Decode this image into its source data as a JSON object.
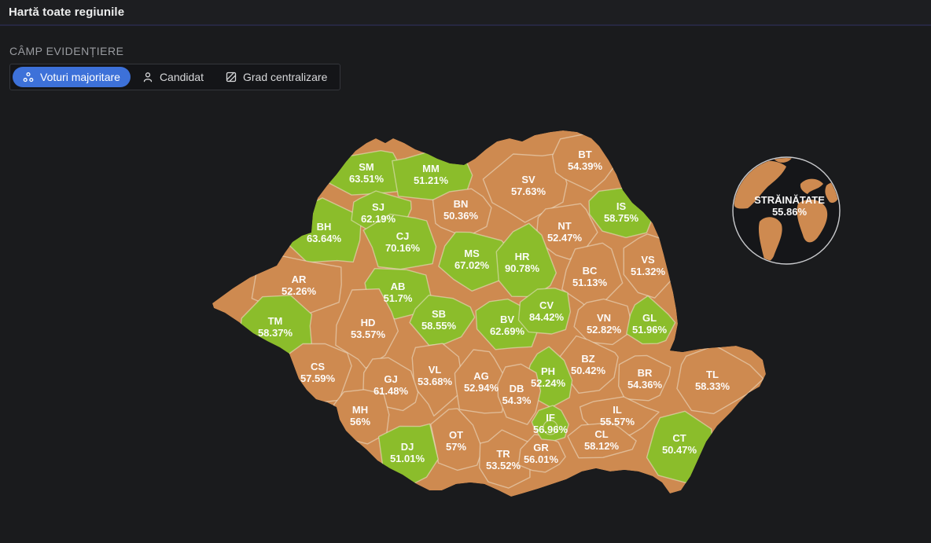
{
  "panel": {
    "title": "Hartă toate regiunile"
  },
  "controls": {
    "field_label": "CÂMP EVIDENȚIERE",
    "active_color": "#3D71D9",
    "options": [
      {
        "label": "Voturi majoritare",
        "icon": "scatter-icon",
        "active": true
      },
      {
        "label": "Candidat",
        "icon": "person-icon",
        "active": false
      },
      {
        "label": "Grad centralizare",
        "icon": "gradient-icon",
        "active": false
      }
    ]
  },
  "map": {
    "colors": {
      "green": "#8BBD2B",
      "orange": "#CE8A50",
      "border": "#EEE3D0",
      "label": "#FFFFFF"
    },
    "regions": [
      {
        "code": "BH",
        "value": "63.64%",
        "tone": "green"
      },
      {
        "code": "SM",
        "value": "63.51%",
        "tone": "green"
      },
      {
        "code": "MM",
        "value": "51.21%",
        "tone": "green"
      },
      {
        "code": "SV",
        "value": "57.63%",
        "tone": "orange"
      },
      {
        "code": "BT",
        "value": "54.39%",
        "tone": "orange"
      },
      {
        "code": "IS",
        "value": "58.75%",
        "tone": "green"
      },
      {
        "code": "SJ",
        "value": "62.19%",
        "tone": "green"
      },
      {
        "code": "BN",
        "value": "50.36%",
        "tone": "orange"
      },
      {
        "code": "NT",
        "value": "52.47%",
        "tone": "orange"
      },
      {
        "code": "VS",
        "value": "51.32%",
        "tone": "orange"
      },
      {
        "code": "CJ",
        "value": "70.16%",
        "tone": "green"
      },
      {
        "code": "MS",
        "value": "67.02%",
        "tone": "green"
      },
      {
        "code": "HR",
        "value": "90.78%",
        "tone": "green"
      },
      {
        "code": "BC",
        "value": "51.13%",
        "tone": "orange"
      },
      {
        "code": "AR",
        "value": "52.26%",
        "tone": "orange"
      },
      {
        "code": "AB",
        "value": "51.7%",
        "tone": "green"
      },
      {
        "code": "TM",
        "value": "58.37%",
        "tone": "green"
      },
      {
        "code": "HD",
        "value": "53.57%",
        "tone": "orange"
      },
      {
        "code": "SB",
        "value": "58.55%",
        "tone": "green"
      },
      {
        "code": "BV",
        "value": "62.69%",
        "tone": "green"
      },
      {
        "code": "CV",
        "value": "84.42%",
        "tone": "green"
      },
      {
        "code": "VN",
        "value": "52.82%",
        "tone": "orange"
      },
      {
        "code": "GL",
        "value": "51.96%",
        "tone": "green"
      },
      {
        "code": "CS",
        "value": "57.59%",
        "tone": "orange"
      },
      {
        "code": "VL",
        "value": "53.68%",
        "tone": "orange"
      },
      {
        "code": "AG",
        "value": "52.94%",
        "tone": "orange"
      },
      {
        "code": "BZ",
        "value": "50.42%",
        "tone": "orange"
      },
      {
        "code": "BR",
        "value": "54.36%",
        "tone": "orange"
      },
      {
        "code": "TL",
        "value": "58.33%",
        "tone": "orange"
      },
      {
        "code": "GJ",
        "value": "61.48%",
        "tone": "orange"
      },
      {
        "code": "PH",
        "value": "52.24%",
        "tone": "green"
      },
      {
        "code": "DB",
        "value": "54.3%",
        "tone": "orange"
      },
      {
        "code": "MH",
        "value": "56%",
        "tone": "orange"
      },
      {
        "code": "IL",
        "value": "55.57%",
        "tone": "orange"
      },
      {
        "code": "CL",
        "value": "58.12%",
        "tone": "orange"
      },
      {
        "code": "OT",
        "value": "57%",
        "tone": "orange"
      },
      {
        "code": "DJ",
        "value": "51.01%",
        "tone": "green"
      },
      {
        "code": "TR",
        "value": "53.52%",
        "tone": "orange"
      },
      {
        "code": "GR",
        "value": "56.01%",
        "tone": "orange"
      },
      {
        "code": "IF",
        "value": "56.96%",
        "tone": "green"
      },
      {
        "code": "CT",
        "value": "50.47%",
        "tone": "green"
      }
    ],
    "diaspora": {
      "code": "STRĂINĂTATE",
      "value": "55.86%",
      "tone": "orange"
    }
  }
}
